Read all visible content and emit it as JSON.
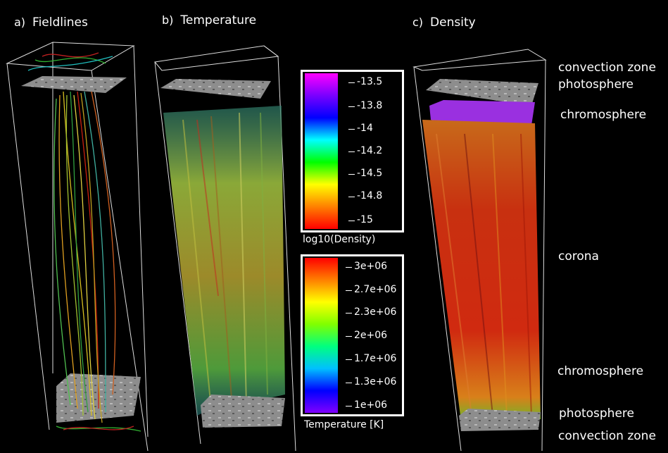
{
  "panels": {
    "a": {
      "letter": "a)",
      "title": "Fieldlines"
    },
    "b": {
      "letter": "b)",
      "title": "Temperature"
    },
    "c": {
      "letter": "c)",
      "title": "Density"
    }
  },
  "layer_labels": {
    "top_convection": "convection zone",
    "top_photosphere": "photosphere",
    "top_chromosphere": "chromosphere",
    "corona": "corona",
    "bottom_chromosphere": "chromosphere",
    "bottom_photosphere": "photosphere",
    "bottom_convection": "convection zone"
  },
  "colorbars": {
    "density": {
      "title": "log10(Density)",
      "ticks": [
        "-13.5",
        "-13.8",
        "-14",
        "-14.2",
        "-14.5",
        "-14.8",
        "-15"
      ]
    },
    "temperature": {
      "title": "Temperature [K]",
      "ticks": [
        "3e+06",
        "2.7e+06",
        "2.3e+06",
        "2e+06",
        "1.7e+06",
        "1.3e+06",
        "1e+06"
      ]
    }
  },
  "colors": {
    "density_gradient": [
      "#ff00ff",
      "#7a00ff",
      "#0000ff",
      "#00ffff",
      "#00ff00",
      "#ffff00",
      "#ff8000",
      "#ff0000"
    ],
    "temperature_gradient": [
      "#ff0000",
      "#ff8000",
      "#ffff00",
      "#80ff00",
      "#00ff80",
      "#00c0ff",
      "#0000ff",
      "#8000ff"
    ]
  }
}
